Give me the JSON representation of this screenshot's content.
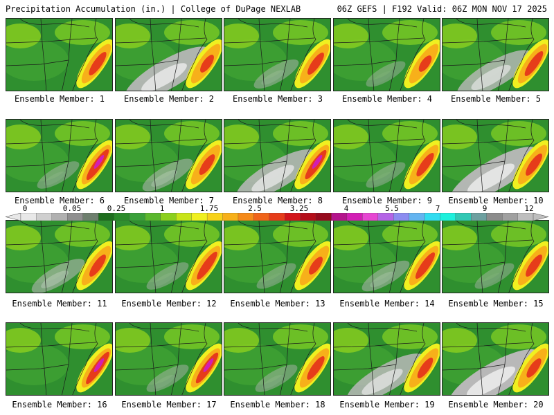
{
  "header": {
    "title": "Precipitation Accumulation (in.) | College of DuPage NEXLAB",
    "valid": "06Z GEFS | F192 Valid: 06Z MON NOV 17 2025"
  },
  "colorbar": {
    "labels": [
      "0",
      "0.05",
      "0.25",
      "1",
      "1.75",
      "2.5",
      "3.25",
      "4",
      "5.5",
      "7",
      "9",
      "12"
    ],
    "colors": [
      "#e8e8e8",
      "#cfcfcf",
      "#b0b0b0",
      "#8f8f8f",
      "#6e7f6e",
      "#1e6e1e",
      "#2a8a2a",
      "#3aa03a",
      "#5bb82e",
      "#8ccf1e",
      "#c8e41a",
      "#f0f020",
      "#f7d21a",
      "#f7b01a",
      "#f58a1a",
      "#f0641a",
      "#e63c1a",
      "#d2141a",
      "#b40e1a",
      "#960a1e",
      "#b4148c",
      "#d21eb4",
      "#e646d2",
      "#b464e6",
      "#8c8cf0",
      "#64b4f0",
      "#32dcf0",
      "#1ef0dc",
      "#32c8b4",
      "#6ea0a0",
      "#8c8c8c",
      "#a0a0a0",
      "#bebebe"
    ]
  },
  "panels": [
    {
      "label": "Ensemble Member: 1",
      "grey": 0.0,
      "red": 0.55
    },
    {
      "label": "Ensemble Member: 2",
      "grey": 0.9,
      "red": 0.35
    },
    {
      "label": "Ensemble Member: 3",
      "grey": 0.15,
      "red": 0.5
    },
    {
      "label": "Ensemble Member: 4",
      "grey": 0.05,
      "red": 0.3
    },
    {
      "label": "Ensemble Member: 5",
      "grey": 0.7,
      "red": 0.6
    },
    {
      "label": "Ensemble Member: 6",
      "grey": 0.1,
      "red": 0.8
    },
    {
      "label": "Ensemble Member: 7",
      "grey": 0.25,
      "red": 0.45
    },
    {
      "label": "Ensemble Member: 8",
      "grey": 0.8,
      "red": 0.75
    },
    {
      "label": "Ensemble Member: 9",
      "grey": 0.05,
      "red": 0.55
    },
    {
      "label": "Ensemble Member: 10",
      "grey": 0.95,
      "red": 0.5
    },
    {
      "label": "Ensemble Member: 11",
      "grey": 0.3,
      "red": 0.5
    },
    {
      "label": "Ensemble Member: 12",
      "grey": 0.1,
      "red": 0.7
    },
    {
      "label": "Ensemble Member: 13",
      "grey": 0.05,
      "red": 0.35
    },
    {
      "label": "Ensemble Member: 14",
      "grey": 0.2,
      "red": 0.65
    },
    {
      "label": "Ensemble Member: 15",
      "grey": 0.05,
      "red": 0.5
    },
    {
      "label": "Ensemble Member: 16",
      "grey": 0.0,
      "red": 0.85
    },
    {
      "label": "Ensemble Member: 17",
      "grey": 0.1,
      "red": 0.8
    },
    {
      "label": "Ensemble Member: 18",
      "grey": 0.1,
      "red": 0.55
    },
    {
      "label": "Ensemble Member: 19",
      "grey": 0.75,
      "red": 0.45
    },
    {
      "label": "Ensemble Member: 20",
      "grey": 1.0,
      "red": 0.4
    }
  ]
}
